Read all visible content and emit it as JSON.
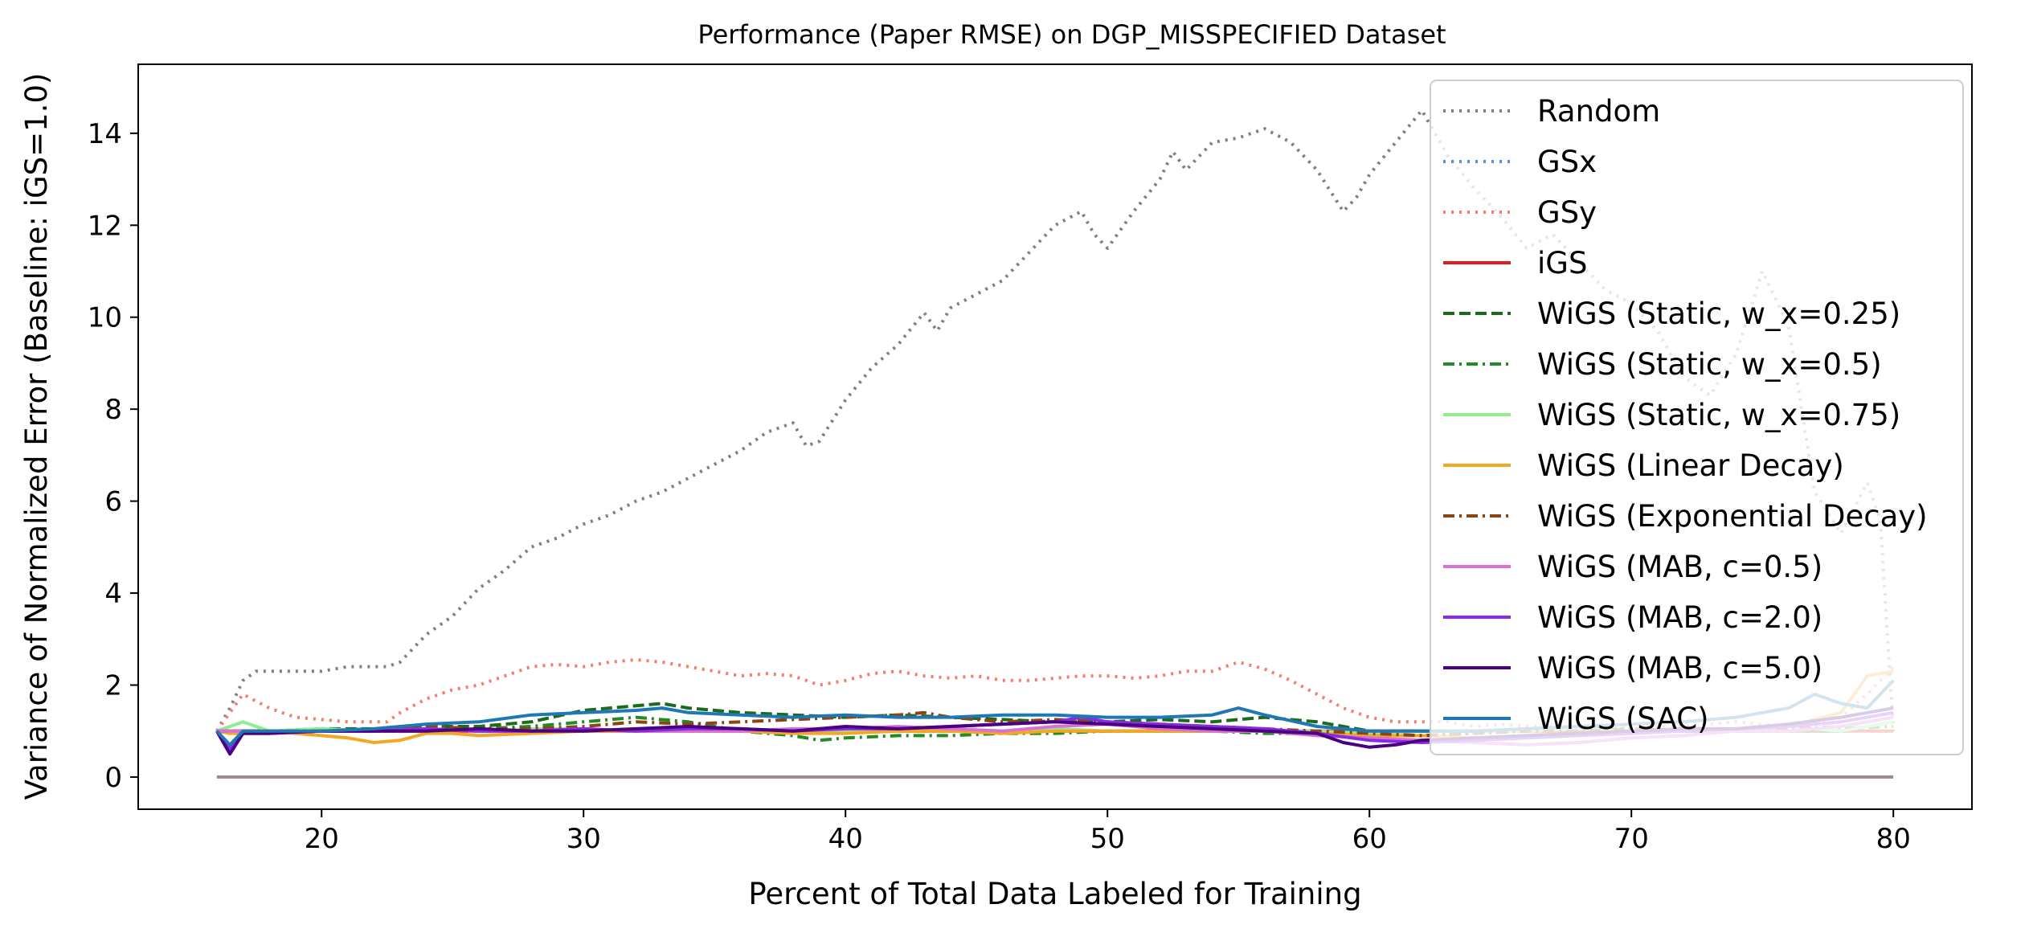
{
  "chart_data": {
    "type": "line",
    "title": "Performance (Paper RMSE) on DGP_MISSPECIFIED Dataset",
    "xlabel": "Percent of Total Data Labeled for Training",
    "ylabel": "Variance of Normalized Error (Baseline: iGS=1.0)",
    "xlim": [
      13,
      83
    ],
    "ylim": [
      -0.7,
      15.5
    ],
    "xticks": [
      20,
      30,
      40,
      50,
      60,
      70,
      80
    ],
    "yticks": [
      0,
      2,
      4,
      6,
      8,
      10,
      12,
      14
    ],
    "grid": false,
    "legend_position": "top-right",
    "series": [
      {
        "name": "Random",
        "color": "#808080",
        "dash": "dotted",
        "x": [
          16,
          16.5,
          17,
          17.5,
          18,
          19,
          20,
          21,
          22,
          22.5,
          23,
          23.5,
          24,
          25,
          26,
          27,
          28,
          29,
          30,
          31,
          32,
          33,
          34,
          35,
          36,
          37,
          38,
          38.5,
          39,
          40,
          41,
          42,
          43,
          43.5,
          44,
          45,
          46,
          47,
          48,
          49,
          49.5,
          50,
          51,
          52,
          52.5,
          53,
          54,
          55,
          56,
          57,
          58,
          59,
          59.5,
          60,
          61,
          62,
          63,
          64,
          65,
          66,
          67,
          68,
          69,
          70,
          71,
          72,
          73,
          74,
          75,
          76,
          77,
          78,
          79,
          79.5,
          80
        ],
        "values": [
          1.0,
          1.5,
          2.1,
          2.3,
          2.3,
          2.3,
          2.3,
          2.4,
          2.4,
          2.4,
          2.5,
          2.8,
          3.1,
          3.5,
          4.1,
          4.5,
          5.0,
          5.2,
          5.5,
          5.7,
          6.0,
          6.2,
          6.5,
          6.8,
          7.1,
          7.5,
          7.7,
          7.2,
          7.3,
          8.2,
          8.9,
          9.4,
          10.1,
          9.7,
          10.2,
          10.5,
          10.8,
          11.4,
          12.0,
          12.3,
          11.8,
          11.5,
          12.3,
          13.0,
          13.6,
          13.2,
          13.8,
          13.9,
          14.1,
          13.8,
          13.2,
          12.3,
          12.6,
          13.1,
          13.8,
          14.5,
          13.5,
          12.8,
          12.2,
          11.5,
          11.8,
          11.2,
          10.6,
          10.3,
          9.7,
          8.7,
          8.3,
          9.2,
          11.0,
          9.8,
          6.2,
          5.3,
          6.4,
          5.6,
          1.0
        ]
      },
      {
        "name": "GSx",
        "color": "#5b8fd6",
        "dash": "dotted",
        "x": [
          16,
          20,
          30,
          40,
          50,
          60,
          70,
          80
        ],
        "values": [
          1.0,
          1.0,
          1.0,
          1.0,
          1.0,
          1.0,
          1.0,
          1.0
        ]
      },
      {
        "name": "GSy",
        "color": "#f47c6b",
        "dash": "dotted",
        "x": [
          16,
          16.5,
          17,
          18,
          19,
          20,
          21,
          22,
          22.5,
          23,
          24,
          25,
          26,
          27,
          28,
          29,
          30,
          31,
          32,
          33,
          34,
          35,
          36,
          37,
          38,
          39,
          40,
          41,
          42,
          43,
          44,
          45,
          46,
          47,
          48,
          49,
          50,
          51,
          52,
          53,
          54,
          55,
          56,
          57,
          58,
          59,
          60,
          61,
          62,
          63,
          64,
          65,
          66,
          68,
          70,
          72,
          74,
          76,
          78,
          79,
          80
        ],
        "values": [
          1.0,
          1.4,
          1.8,
          1.5,
          1.3,
          1.25,
          1.2,
          1.2,
          1.2,
          1.4,
          1.7,
          1.9,
          2.0,
          2.2,
          2.4,
          2.45,
          2.4,
          2.5,
          2.55,
          2.5,
          2.4,
          2.3,
          2.2,
          2.25,
          2.2,
          2.0,
          2.1,
          2.25,
          2.3,
          2.2,
          2.15,
          2.2,
          2.1,
          2.1,
          2.15,
          2.2,
          2.2,
          2.15,
          2.2,
          2.3,
          2.3,
          2.5,
          2.35,
          2.1,
          1.8,
          1.5,
          1.3,
          1.2,
          1.2,
          1.2,
          1.1,
          1.15,
          1.1,
          1.1,
          1.1,
          1.1,
          1.2,
          1.1,
          1.3,
          1.8,
          2.4
        ]
      },
      {
        "name": "iGS",
        "color": "#e41a1c",
        "dash": "solid",
        "x": [
          16,
          80
        ],
        "values": [
          1.0,
          1.0
        ]
      },
      {
        "name": "WiGS (Static, w_x=0.25)",
        "color": "#1a6b1a",
        "dash": "dashed",
        "x": [
          16,
          17,
          18,
          20,
          22,
          24,
          26,
          28,
          30,
          31,
          32,
          33,
          34,
          36,
          38,
          40,
          42,
          44,
          46,
          48,
          50,
          52,
          54,
          56,
          58,
          60,
          62,
          64,
          66,
          68,
          70,
          72,
          74,
          76,
          78,
          80
        ],
        "values": [
          1.0,
          1.0,
          1.0,
          1.05,
          1.05,
          1.1,
          1.1,
          1.2,
          1.45,
          1.5,
          1.55,
          1.6,
          1.5,
          1.4,
          1.35,
          1.3,
          1.35,
          1.3,
          1.25,
          1.2,
          1.2,
          1.25,
          1.2,
          1.3,
          1.2,
          1.0,
          1.0,
          1.0,
          1.0,
          1.1,
          1.0,
          1.0,
          1.0,
          1.0,
          1.0,
          1.2
        ]
      },
      {
        "name": "WiGS (Static, w_x=0.5)",
        "color": "#228b22",
        "dash": "dashdot",
        "x": [
          16,
          17,
          18,
          20,
          22,
          24,
          26,
          28,
          30,
          32,
          34,
          36,
          38,
          39,
          40,
          42,
          44,
          46,
          48,
          50,
          52,
          54,
          56,
          58,
          60,
          62,
          64,
          66,
          68,
          70,
          72,
          74,
          76,
          78,
          80
        ],
        "values": [
          1.0,
          1.0,
          1.0,
          1.0,
          1.0,
          1.1,
          1.05,
          1.1,
          1.2,
          1.3,
          1.2,
          1.0,
          0.9,
          0.8,
          0.85,
          0.9,
          0.9,
          0.95,
          0.95,
          1.0,
          1.0,
          1.0,
          0.95,
          0.95,
          0.9,
          0.9,
          0.95,
          1.0,
          1.0,
          1.05,
          1.0,
          1.0,
          1.0,
          1.05,
          1.1
        ]
      },
      {
        "name": "WiGS (Static, w_x=0.75)",
        "color": "#90ee90",
        "dash": "solid",
        "x": [
          16,
          17,
          18,
          20,
          22,
          24,
          26,
          28,
          30,
          32,
          34,
          36,
          38,
          40,
          42,
          44,
          46,
          48,
          50,
          52,
          54,
          56,
          58,
          60,
          62,
          64,
          66,
          68,
          70,
          72,
          74,
          76,
          78,
          80
        ],
        "values": [
          1.0,
          1.2,
          1.0,
          1.05,
          1.0,
          1.05,
          1.0,
          1.05,
          1.05,
          1.0,
          1.0,
          1.05,
          1.0,
          1.0,
          1.0,
          1.05,
          1.0,
          1.05,
          1.0,
          1.0,
          1.0,
          1.0,
          1.0,
          0.95,
          1.0,
          1.0,
          1.0,
          1.05,
          1.0,
          1.05,
          1.0,
          1.1,
          1.0,
          1.2
        ]
      },
      {
        "name": "WiGS (Linear Decay)",
        "color": "#f5a623",
        "dash": "solid",
        "x": [
          16,
          16.5,
          17,
          18,
          19,
          20,
          21,
          22,
          23,
          24,
          25,
          26,
          28,
          30,
          32,
          34,
          36,
          38,
          40,
          42,
          44,
          46,
          48,
          50,
          52,
          54,
          56,
          58,
          60,
          62,
          64,
          66,
          68,
          70,
          72,
          74,
          76,
          78,
          79,
          80
        ],
        "values": [
          1.0,
          0.95,
          0.95,
          1.0,
          0.95,
          0.9,
          0.85,
          0.75,
          0.8,
          0.95,
          0.95,
          0.9,
          0.95,
          1.0,
          1.0,
          1.0,
          1.0,
          0.95,
          0.95,
          1.0,
          1.0,
          0.95,
          1.0,
          1.0,
          1.0,
          1.0,
          1.0,
          0.95,
          0.9,
          0.9,
          0.85,
          0.9,
          0.95,
          1.0,
          1.0,
          1.05,
          1.1,
          1.4,
          2.2,
          2.3
        ]
      },
      {
        "name": "WiGS (Exponential Decay)",
        "color": "#8b4513",
        "dash": "dashdot",
        "x": [
          16,
          17,
          18,
          20,
          22,
          24,
          26,
          28,
          30,
          32,
          34,
          36,
          38,
          40,
          42,
          43,
          44,
          46,
          48,
          50,
          52,
          54,
          56,
          58,
          60,
          62,
          64,
          66,
          68,
          70,
          72,
          74,
          76,
          78,
          80
        ],
        "values": [
          1.0,
          1.0,
          1.0,
          1.0,
          1.05,
          1.1,
          1.05,
          1.05,
          1.1,
          1.2,
          1.15,
          1.2,
          1.25,
          1.3,
          1.35,
          1.4,
          1.3,
          1.2,
          1.25,
          1.2,
          1.15,
          1.1,
          1.05,
          1.0,
          0.95,
          0.9,
          0.95,
          1.0,
          1.0,
          1.05,
          1.0,
          1.0,
          1.05,
          1.1,
          1.3
        ]
      },
      {
        "name": "WiGS (MAB, c=0.5)",
        "color": "#da70d6",
        "dash": "solid",
        "x": [
          16,
          17,
          18,
          20,
          22,
          24,
          26,
          28,
          30,
          32,
          34,
          36,
          38,
          40,
          42,
          44,
          46,
          48,
          50,
          52,
          54,
          56,
          58,
          60,
          62,
          64,
          66,
          68,
          70,
          72,
          74,
          76,
          78,
          80
        ],
        "values": [
          1.0,
          1.0,
          0.95,
          1.0,
          1.0,
          1.05,
          1.0,
          1.0,
          1.05,
          1.0,
          1.0,
          1.0,
          1.05,
          1.05,
          1.1,
          1.05,
          1.0,
          1.1,
          1.15,
          1.05,
          1.0,
          1.0,
          0.9,
          0.85,
          0.8,
          0.75,
          0.7,
          0.75,
          0.85,
          0.9,
          1.0,
          1.0,
          1.1,
          1.3
        ]
      },
      {
        "name": "WiGS (MAB, c=2.0)",
        "color": "#8a2be2",
        "dash": "solid",
        "x": [
          16,
          16.5,
          17,
          18,
          20,
          22,
          24,
          26,
          28,
          30,
          32,
          34,
          36,
          38,
          40,
          42,
          44,
          46,
          48,
          49,
          50,
          52,
          54,
          56,
          58,
          60,
          62,
          64,
          66,
          68,
          70,
          72,
          74,
          76,
          78,
          80
        ],
        "values": [
          1.0,
          0.6,
          0.95,
          0.95,
          1.0,
          1.0,
          1.05,
          1.0,
          1.0,
          1.05,
          1.0,
          1.05,
          1.05,
          1.0,
          1.05,
          1.05,
          1.1,
          1.15,
          1.2,
          1.3,
          1.2,
          1.15,
          1.1,
          1.05,
          0.95,
          0.8,
          0.75,
          0.8,
          0.85,
          0.9,
          0.95,
          1.0,
          1.05,
          1.1,
          1.2,
          1.4
        ]
      },
      {
        "name": "WiGS (MAB, c=5.0)",
        "color": "#4b0082",
        "dash": "solid",
        "x": [
          16,
          16.5,
          17,
          18,
          20,
          22,
          24,
          26,
          28,
          30,
          32,
          34,
          36,
          38,
          40,
          42,
          44,
          46,
          48,
          50,
          52,
          54,
          56,
          58,
          59,
          60,
          61,
          62,
          64,
          66,
          68,
          70,
          72,
          74,
          76,
          78,
          80
        ],
        "values": [
          1.0,
          0.5,
          0.95,
          0.95,
          1.0,
          1.0,
          1.0,
          1.05,
          1.0,
          1.0,
          1.05,
          1.1,
          1.05,
          1.0,
          1.1,
          1.05,
          1.1,
          1.15,
          1.2,
          1.15,
          1.1,
          1.05,
          1.0,
          0.95,
          0.75,
          0.65,
          0.7,
          0.8,
          0.85,
          0.9,
          0.95,
          1.0,
          1.05,
          1.05,
          1.15,
          1.3,
          1.5
        ]
      },
      {
        "name": "WiGS (SAC)",
        "color": "#1f77b4",
        "dash": "solid",
        "x": [
          16,
          16.5,
          17,
          18,
          20,
          22,
          24,
          26,
          28,
          30,
          32,
          33,
          34,
          36,
          38,
          40,
          42,
          44,
          46,
          48,
          50,
          52,
          54,
          55,
          56,
          58,
          60,
          62,
          64,
          66,
          68,
          70,
          72,
          74,
          76,
          77,
          78,
          79,
          80
        ],
        "values": [
          1.0,
          0.7,
          1.0,
          1.0,
          1.0,
          1.05,
          1.15,
          1.2,
          1.35,
          1.4,
          1.45,
          1.5,
          1.4,
          1.35,
          1.3,
          1.35,
          1.3,
          1.3,
          1.35,
          1.35,
          1.3,
          1.3,
          1.35,
          1.5,
          1.35,
          1.1,
          1.0,
          1.0,
          1.0,
          1.05,
          1.1,
          1.15,
          1.2,
          1.3,
          1.5,
          1.8,
          1.6,
          1.5,
          2.1
        ]
      },
      {
        "name": "",
        "color": "#a08890",
        "dash": "solid",
        "x": [
          16,
          80
        ],
        "values": [
          0,
          0
        ]
      }
    ]
  }
}
